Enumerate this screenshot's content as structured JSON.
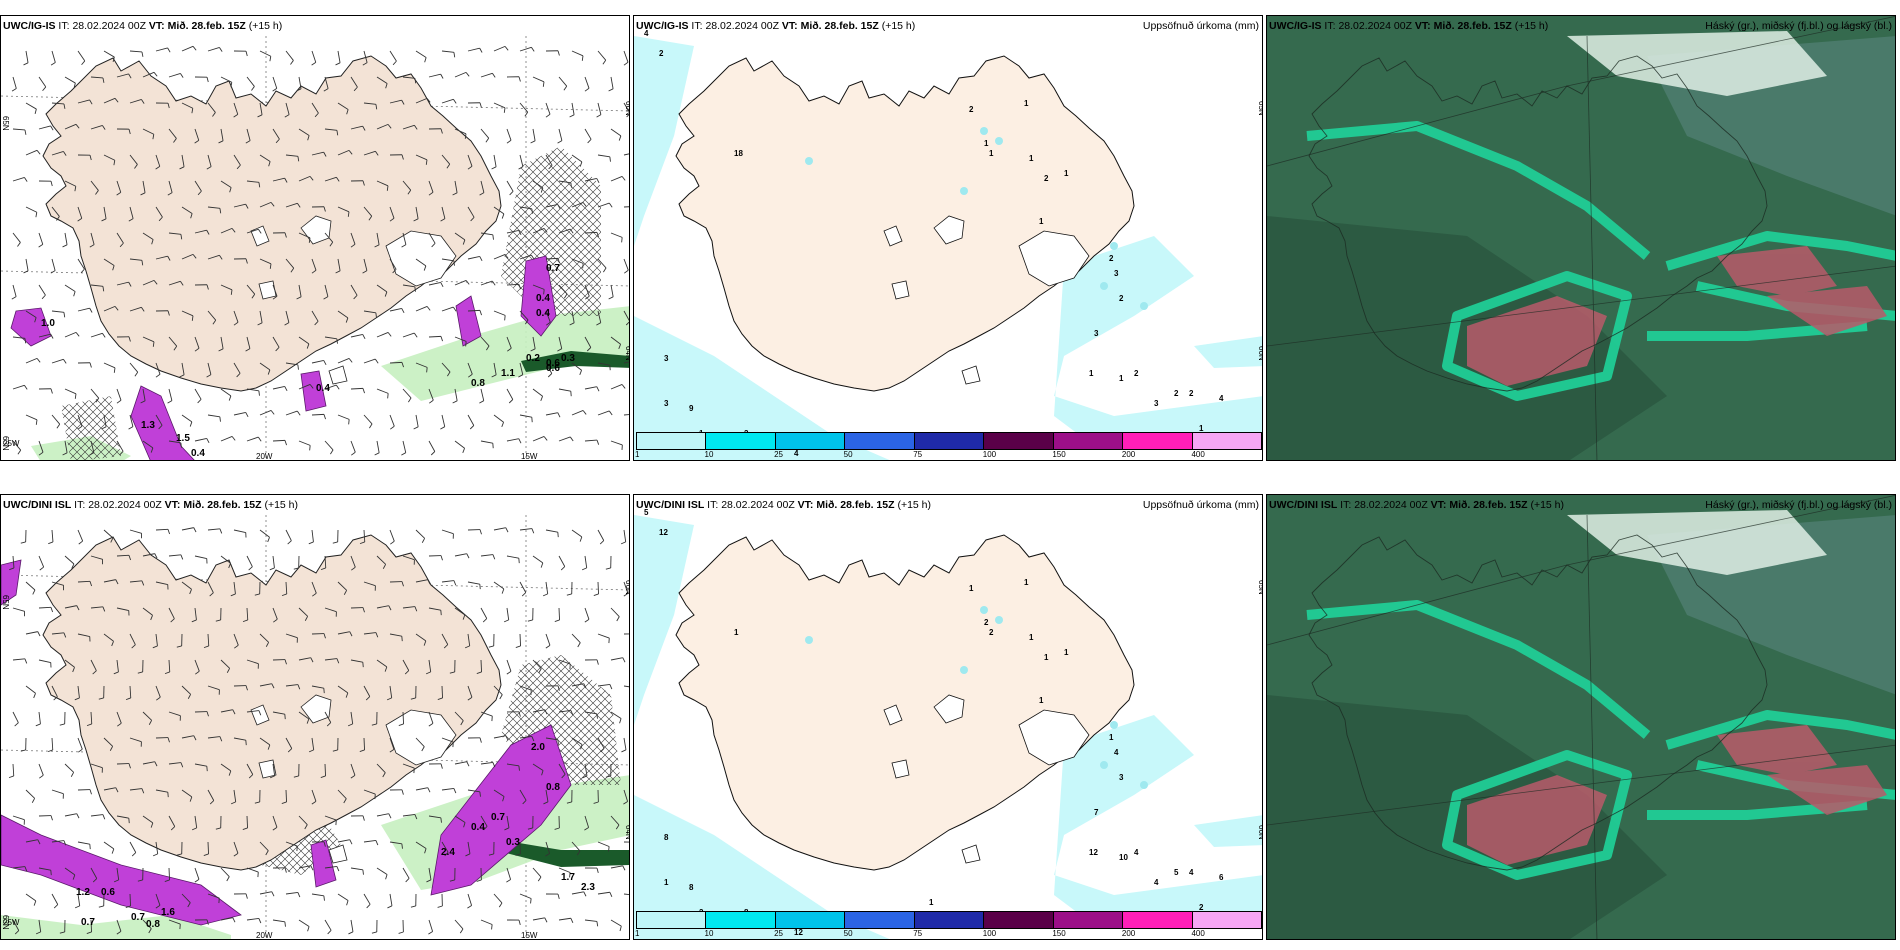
{
  "panels": [
    {
      "model": "UWC/IG-IS",
      "it_label": "IT:",
      "it_value": "28.02.2024 00Z",
      "vt_label": "VT:",
      "vt_value": "Mið. 28.feb. 15Z",
      "lead": "(+15 h)",
      "right_title": "",
      "type": "wind",
      "lat_labels": [
        "65N",
        "66N",
        "64N",
        "63N"
      ],
      "lon_labels": [
        "20W",
        "15W",
        "25W"
      ],
      "values": [
        "0.4",
        "0.6",
        "0.8",
        "1.1",
        "0.2",
        "0.3",
        "0.6",
        "0.4",
        "0.7",
        "1.5",
        "0.4",
        "1.3",
        "1.0",
        "0.4"
      ]
    },
    {
      "model": "UWC/IG-IS",
      "it_label": "IT:",
      "it_value": "28.02.2024 00Z",
      "vt_label": "VT:",
      "vt_value": "Mið. 28.feb. 15Z",
      "lead": "(+15 h)",
      "right_title": "Uppsöfnuð úrkoma (mm)",
      "type": "precip",
      "lat_labels": [
        "65N",
        "66N"
      ],
      "values": [
        "4",
        "2",
        "3",
        "3",
        "9",
        "1",
        "2",
        "4",
        "18",
        "2",
        "1",
        "1",
        "1",
        "1",
        "2",
        "1",
        "1",
        "2",
        "3",
        "2",
        "3",
        "1",
        "1",
        "2",
        "2",
        "2",
        "4",
        "3",
        "1"
      ]
    },
    {
      "model": "UWC/IG-IS",
      "it_label": "IT:",
      "it_value": "28.02.2024 00Z",
      "vt_label": "VT:",
      "vt_value": "Mið. 28.feb. 15Z",
      "lead": "(+15 h)",
      "right_title": "Háský (gr.), miðský (fj.bl.) og lágský (bl.)",
      "type": "cloud"
    },
    {
      "model": "UWC/DINI ISL",
      "it_label": "IT:",
      "it_value": "28.02.2024 00Z",
      "vt_label": "VT:",
      "vt_value": "Mið. 28.feb. 15Z",
      "lead": "(+15 h)",
      "right_title": "",
      "type": "wind",
      "lat_labels": [
        "65N",
        "66N",
        "64N",
        "63N"
      ],
      "lon_labels": [
        "20W",
        "15W",
        "25W"
      ],
      "values": [
        "0.8",
        "0.7",
        "0.3",
        "1.7",
        "2.3",
        "0.4",
        "0.7",
        "1.2",
        "0.6",
        "0.7",
        "0.8",
        "2.4",
        "1.6",
        "2.0"
      ]
    },
    {
      "model": "UWC/DINI ISL",
      "it_label": "IT:",
      "it_value": "28.02.2024 00Z",
      "vt_label": "VT:",
      "vt_value": "Mið. 28.feb. 15Z",
      "lead": "(+15 h)",
      "right_title": "Uppsöfnuð úrkoma (mm)",
      "type": "precip",
      "lat_labels": [
        "65N",
        "66N"
      ],
      "values": [
        "5",
        "12",
        "8",
        "1",
        "8",
        "2",
        "8",
        "12",
        "1",
        "1",
        "1",
        "2",
        "2",
        "1",
        "1",
        "1",
        "1",
        "1",
        "4",
        "3",
        "7",
        "12",
        "10",
        "4",
        "5",
        "4",
        "6",
        "4",
        "2",
        "1"
      ]
    },
    {
      "model": "UWC/DINI ISL",
      "it_label": "IT:",
      "it_value": "28.02.2024 00Z",
      "vt_label": "VT:",
      "vt_value": "Mið. 28.feb. 15Z",
      "lead": "(+15 h)",
      "right_title": "Háský (gr.), miðský (fj.bl.) og lágský (bl.)",
      "type": "cloud"
    }
  ],
  "colorbar": {
    "ticks": [
      "1",
      "10",
      "25",
      "50",
      "75",
      "100",
      "150",
      "200",
      "400"
    ],
    "colors": [
      "#bff6f8",
      "#00e8f0",
      "#00c3ea",
      "#2b64e4",
      "#1f2aa8",
      "#5a0048",
      "#9c0f88",
      "#ff1fb8",
      "#f6a6f4"
    ]
  },
  "colors": {
    "land": "#f3e3d6",
    "land_light": "#fcefe3",
    "precip_light": "#c8f8fa",
    "magenta": "#c040d8",
    "green": "#c6f0c0",
    "cloud_bg": "#356a4e",
    "cloud_teal": "#1fd39a",
    "cloud_red": "#b85a6a"
  }
}
